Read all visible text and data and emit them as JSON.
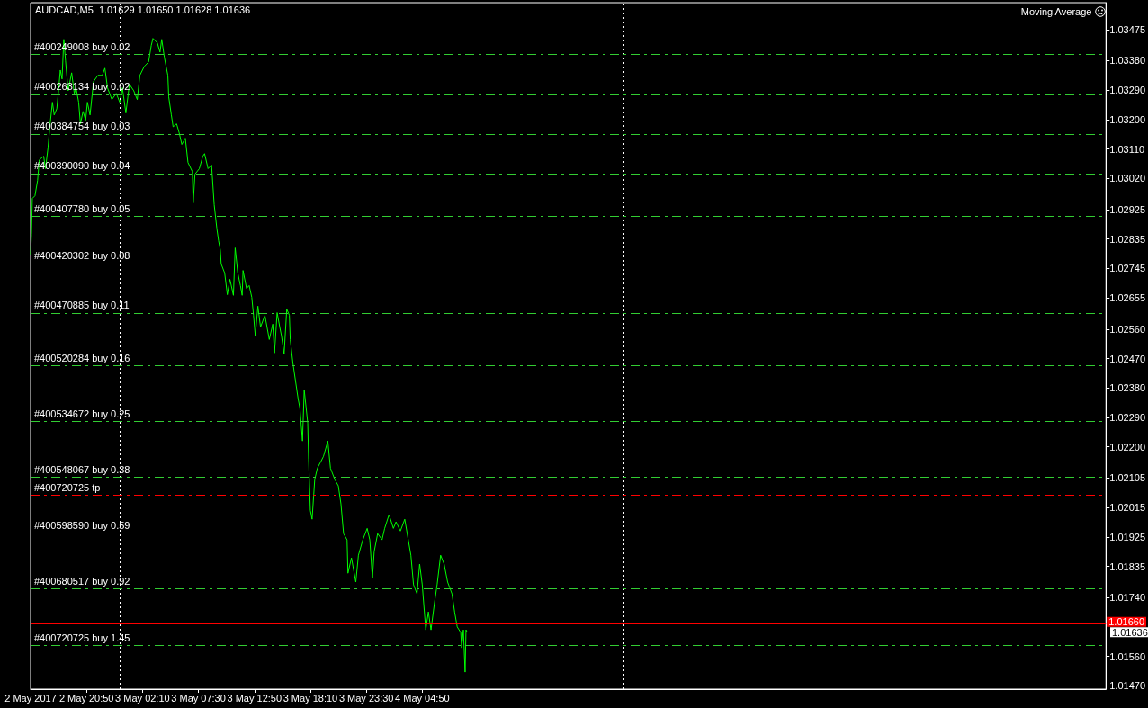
{
  "chart_data": {
    "type": "line",
    "title": "AUDCAD,M5  1.01629 1.01650 1.01628 1.01636",
    "color": "#00ff00",
    "marker": "none",
    "line_style": "solid",
    "x": [
      "2017-05-02T15:30",
      "2017-05-02T15:35",
      "2017-05-02T15:40",
      "2017-05-02T15:55",
      "2017-05-02T16:10",
      "2017-05-02T16:20",
      "2017-05-02T16:45",
      "2017-05-02T16:55",
      "2017-05-02T17:10",
      "2017-05-02T17:20",
      "2017-05-02T17:35",
      "2017-05-02T17:45",
      "2017-05-02T18:00",
      "2017-05-02T18:10",
      "2017-05-02T18:20",
      "2017-05-02T18:30",
      "2017-05-02T18:40",
      "2017-05-02T18:50",
      "2017-05-02T19:05",
      "2017-05-02T19:25",
      "2017-05-02T19:40",
      "2017-05-02T19:50",
      "2017-05-02T20:05",
      "2017-05-02T20:15",
      "2017-05-02T20:30",
      "2017-05-02T20:45",
      "2017-05-02T20:55",
      "2017-05-02T21:10",
      "2017-05-02T21:30",
      "2017-05-02T21:55",
      "2017-05-02T22:20",
      "2017-05-02T22:35",
      "2017-05-02T22:50",
      "2017-05-02T23:15",
      "2017-05-02T23:40",
      "2017-05-03T00:00",
      "2017-05-03T00:15",
      "2017-05-03T00:35",
      "2017-05-03T00:55",
      "2017-05-03T01:20",
      "2017-05-03T01:40",
      "2017-05-03T01:55",
      "2017-05-03T02:20",
      "2017-05-03T02:45",
      "2017-05-03T03:00",
      "2017-05-03T03:10",
      "2017-05-03T03:35",
      "2017-05-03T03:50",
      "2017-05-03T04:00",
      "2017-05-03T04:15",
      "2017-05-03T04:35",
      "2017-05-03T04:40",
      "2017-05-03T04:55",
      "2017-05-03T05:05",
      "2017-05-03T05:25",
      "2017-05-03T05:40",
      "2017-05-03T05:55",
      "2017-05-03T06:15",
      "2017-05-03T06:30",
      "2017-05-03T06:55",
      "2017-05-03T07:00",
      "2017-05-03T07:10",
      "2017-05-03T07:35",
      "2017-05-03T07:55",
      "2017-05-03T08:05",
      "2017-05-03T08:25",
      "2017-05-03T08:45",
      "2017-05-03T09:00",
      "2017-05-03T09:15",
      "2017-05-03T09:25",
      "2017-05-03T09:35",
      "2017-05-03T09:40",
      "2017-05-03T10:00",
      "2017-05-03T10:15",
      "2017-05-03T10:30",
      "2017-05-03T10:50",
      "2017-05-03T11:00",
      "2017-05-03T11:15",
      "2017-05-03T11:30",
      "2017-05-03T11:40",
      "2017-05-03T11:45",
      "2017-05-03T12:05",
      "2017-05-03T12:20",
      "2017-05-03T12:35",
      "2017-05-03T12:45",
      "2017-05-03T12:55",
      "2017-05-03T13:10",
      "2017-05-03T13:25",
      "2017-05-03T13:50",
      "2017-05-03T14:15",
      "2017-05-03T14:35",
      "2017-05-03T14:45",
      "2017-05-03T15:00",
      "2017-05-03T15:15",
      "2017-05-03T15:25",
      "2017-05-03T15:40",
      "2017-05-03T15:55",
      "2017-05-03T16:10",
      "2017-05-03T16:15",
      "2017-05-03T16:30",
      "2017-05-03T16:45",
      "2017-05-03T17:00",
      "2017-05-03T17:10",
      "2017-05-03T17:25",
      "2017-05-03T17:35",
      "2017-05-03T17:55",
      "2017-05-03T18:00",
      "2017-05-03T18:10",
      "2017-05-03T18:20",
      "2017-05-03T18:35",
      "2017-05-03T18:50",
      "2017-05-03T19:10",
      "2017-05-03T19:25",
      "2017-05-03T19:50",
      "2017-05-03T20:05",
      "2017-05-03T20:30",
      "2017-05-03T20:50",
      "2017-05-03T21:05",
      "2017-05-03T21:20",
      "2017-05-03T21:40",
      "2017-05-03T21:45",
      "2017-05-03T22:05",
      "2017-05-03T22:30",
      "2017-05-03T22:45",
      "2017-05-03T23:10",
      "2017-05-03T23:35",
      "2017-05-03T23:50",
      "2017-05-04T00:05",
      "2017-05-04T00:15",
      "2017-05-04T00:35",
      "2017-05-04T01:00",
      "2017-05-04T01:15",
      "2017-05-04T01:40",
      "2017-05-04T02:05",
      "2017-05-04T02:20",
      "2017-05-04T02:45",
      "2017-05-04T03:10",
      "2017-05-04T03:30",
      "2017-05-04T03:45",
      "2017-05-04T04:00",
      "2017-05-04T04:20",
      "2017-05-04T04:35",
      "2017-05-04T04:50",
      "2017-05-04T05:10",
      "2017-05-04T05:25",
      "2017-05-04T05:40",
      "2017-05-04T06:00",
      "2017-05-04T06:15",
      "2017-05-04T06:35",
      "2017-05-04T06:55",
      "2017-05-04T07:15",
      "2017-05-04T07:40",
      "2017-05-04T07:55",
      "2017-05-04T08:10",
      "2017-05-04T08:30",
      "2017-05-04T08:35",
      "2017-05-04T08:45",
      "2017-05-04T08:55",
      "2017-05-04T09:00",
      "2017-05-04T09:05"
    ],
    "values": [
      1.02789,
      1.02849,
      1.02959,
      1.02967,
      1.03014,
      1.03077,
      1.03088,
      1.0305,
      1.03115,
      1.03178,
      1.03253,
      1.03214,
      1.03233,
      1.03288,
      1.03351,
      1.03324,
      1.03445,
      1.03379,
      1.03288,
      1.03343,
      1.0328,
      1.03297,
      1.03253,
      1.03187,
      1.03225,
      1.03198,
      1.03253,
      1.03214,
      1.03316,
      1.03335,
      1.03335,
      1.03357,
      1.03297,
      1.03261,
      1.0328,
      1.03253,
      1.03297,
      1.0322,
      1.03308,
      1.03288,
      1.03261,
      1.03335,
      1.03362,
      1.03376,
      1.03426,
      1.03448,
      1.03434,
      1.03406,
      1.03445,
      1.0339,
      1.03335,
      1.03269,
      1.03214,
      1.03178,
      1.03187,
      1.03159,
      1.03124,
      1.03143,
      1.03069,
      1.03041,
      1.02945,
      1.03033,
      1.0305,
      1.03088,
      1.03096,
      1.0305,
      1.03061,
      1.0294,
      1.02868,
      1.0283,
      1.02802,
      1.02759,
      1.02731,
      1.02665,
      1.02712,
      1.02663,
      1.02808,
      1.02731,
      1.02693,
      1.02663,
      1.02739,
      1.02684,
      1.02693,
      1.02657,
      1.02602,
      1.02539,
      1.0263,
      1.02566,
      1.02602,
      1.02528,
      1.02575,
      1.02487,
      1.0261,
      1.02566,
      1.02539,
      1.02484,
      1.02621,
      1.02602,
      1.02528,
      1.02457,
      1.02402,
      1.02347,
      1.02319,
      1.02218,
      1.02374,
      1.02273,
      1.02163,
      1.02006,
      1.01979,
      1.021,
      1.02135,
      1.02155,
      1.02171,
      1.02218,
      1.02135,
      1.021,
      1.02081,
      1.02026,
      1.01935,
      1.01916,
      1.01814,
      1.01861,
      1.01787,
      1.01869,
      1.01916,
      1.01951,
      1.01916,
      1.01798,
      1.0188,
      1.01935,
      1.01916,
      1.01951,
      1.01993,
      1.01951,
      1.01971,
      1.01943,
      1.01979,
      1.01916,
      1.01869,
      1.01779,
      1.01751,
      1.01842,
      1.01779,
      1.01641,
      1.01696,
      1.01641,
      1.01724,
      1.01779,
      1.01869,
      1.01842,
      1.01787,
      1.01751,
      1.01696,
      1.0165,
      1.01633,
      1.01586,
      1.01641,
      1.01512,
      1.01641,
      1.01636
    ],
    "xlim": [
      "2017-05-02T15:30",
      "2017-05-06T22:00"
    ],
    "xticks": [
      {
        "value": "2017-05-02T15:30",
        "label": "2 May 2017"
      },
      {
        "value": "2017-05-02T20:50",
        "label": "2 May 20:50"
      },
      {
        "value": "2017-05-03T02:10",
        "label": "3 May 02:10"
      },
      {
        "value": "2017-05-03T07:30",
        "label": "3 May 07:30"
      },
      {
        "value": "2017-05-03T12:50",
        "label": "3 May 12:50"
      },
      {
        "value": "2017-05-03T18:10",
        "label": "3 May 18:10"
      },
      {
        "value": "2017-05-03T23:30",
        "label": "3 May 23:30"
      },
      {
        "value": "2017-05-04T04:50",
        "label": "4 May 04:50"
      }
    ],
    "ylim": [
      1.0146,
      1.03557
    ],
    "yticks": [
      1.03475,
      {
        "value": 1.0338,
        "label": "1.03380"
      },
      {
        "value": 1.0329,
        "label": "1.03290"
      },
      {
        "value": 1.032,
        "label": "1.03200"
      },
      {
        "value": 1.0311,
        "label": "1.03110"
      },
      {
        "value": 1.0302,
        "label": "1.03020"
      },
      1.02925,
      1.02835,
      1.02745,
      1.02655,
      {
        "value": 1.0256,
        "label": "1.02560"
      },
      {
        "value": 1.0247,
        "label": "1.02470"
      },
      {
        "value": 1.0238,
        "label": "1.02380"
      },
      {
        "value": 1.0229,
        "label": "1.02290"
      },
      {
        "value": 1.022,
        "label": "1.02200"
      },
      1.02105,
      1.02015,
      1.01925,
      1.01835,
      {
        "value": 1.0174,
        "label": "1.01740"
      },
      {
        "value": 1.0156,
        "label": "1.01560"
      },
      {
        "value": 1.0147,
        "label": "1.01470"
      }
    ],
    "ref_lines": [
      {
        "axis": "x",
        "value": "2017-05-03T00:00",
        "color": "#ffffff",
        "line_style": "dotted"
      },
      {
        "axis": "x",
        "value": "2017-05-04T00:00",
        "color": "#ffffff",
        "line_style": "dotted"
      },
      {
        "axis": "x",
        "value": "2017-05-05T00:00",
        "color": "#ffffff",
        "line_style": "dotted"
      },
      {
        "axis": "y",
        "value": 1.034,
        "label": "#400249008 buy 0.02",
        "color": "#32cd32",
        "line_style": "dashed"
      },
      {
        "axis": "y",
        "value": 1.03277,
        "label": "#400263134 buy 0.02",
        "color": "#32cd32",
        "line_style": "dashed"
      },
      {
        "axis": "y",
        "value": 1.03156,
        "label": "#400384754 buy 0.03",
        "color": "#32cd32",
        "line_style": "dashed"
      },
      {
        "axis": "y",
        "value": 1.03035,
        "label": "#400390090 buy 0.04",
        "color": "#32cd32",
        "line_style": "dashed"
      },
      {
        "axis": "y",
        "value": 1.02904,
        "label": "#400407780 buy 0.05",
        "color": "#32cd32",
        "line_style": "dashed"
      },
      {
        "axis": "y",
        "value": 1.0276,
        "label": "#400420302 buy 0.08",
        "color": "#32cd32",
        "line_style": "dashed"
      },
      {
        "axis": "y",
        "value": 1.02609,
        "label": "#400470885 buy 0.11",
        "color": "#32cd32",
        "line_style": "dashed"
      },
      {
        "axis": "y",
        "value": 1.02448,
        "label": "#400520284 buy 0.16",
        "color": "#32cd32",
        "line_style": "dashed"
      },
      {
        "axis": "y",
        "value": 1.02277,
        "label": "#400534672 buy 0.25",
        "color": "#32cd32",
        "line_style": "dashed"
      },
      {
        "axis": "y",
        "value": 1.02107,
        "label": "#400548067 buy 0.38",
        "color": "#32cd32",
        "line_style": "dashed"
      },
      {
        "axis": "y",
        "value": 1.02052,
        "label": "#400720725 tp",
        "color": "#ff0000",
        "line_style": "dashed"
      },
      {
        "axis": "y",
        "value": 1.01937,
        "label": "#400598590 buy 0.59",
        "color": "#32cd32",
        "line_style": "dashed"
      },
      {
        "axis": "y",
        "value": 1.01767,
        "label": "#400680517 buy 0.92",
        "color": "#32cd32",
        "line_style": "dashed"
      },
      {
        "axis": "y",
        "value": 1.01594,
        "label": "#400720725 buy 1.45",
        "color": "#32cd32",
        "line_style": "dashed"
      },
      {
        "axis": "y",
        "value": 1.0166,
        "label": "1.01660",
        "color": "#ff0000",
        "line_style": "solid"
      }
    ],
    "annotations": [
      "Moving Average",
      "1.01636"
    ]
  }
}
